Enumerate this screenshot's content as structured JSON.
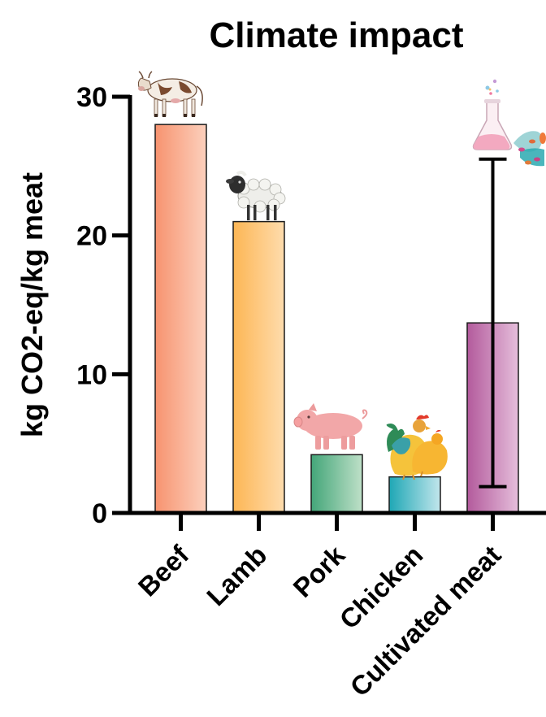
{
  "chart_data": {
    "type": "bar",
    "title": "Climate impact",
    "xlabel": "",
    "ylabel": "kg CO2-eq/kg meat",
    "ylim": [
      0,
      30
    ],
    "yticks": [
      0,
      10,
      20,
      30
    ],
    "grid": false,
    "legend": "none",
    "categories": [
      "Beef",
      "Lamb",
      "Pork",
      "Chicken",
      "Cultivated meat"
    ],
    "values": [
      28.0,
      21.0,
      4.2,
      2.6,
      13.7
    ],
    "error_bars": [
      null,
      null,
      null,
      null,
      {
        "low": 1.9,
        "high": 25.5
      }
    ],
    "colors": [
      [
        "#f7936f",
        "#fcd0bd"
      ],
      [
        "#fdb654",
        "#fedcad"
      ],
      [
        "#43a679",
        "#bfe0c8"
      ],
      [
        "#1ea7b5",
        "#c2e6ec"
      ],
      [
        "#b35a9c",
        "#e5bedb"
      ]
    ],
    "icons": [
      "cow-icon",
      "sheep-icon",
      "pig-icon",
      "rooster-hen-icon",
      "lab-flask-cells-icon"
    ]
  }
}
